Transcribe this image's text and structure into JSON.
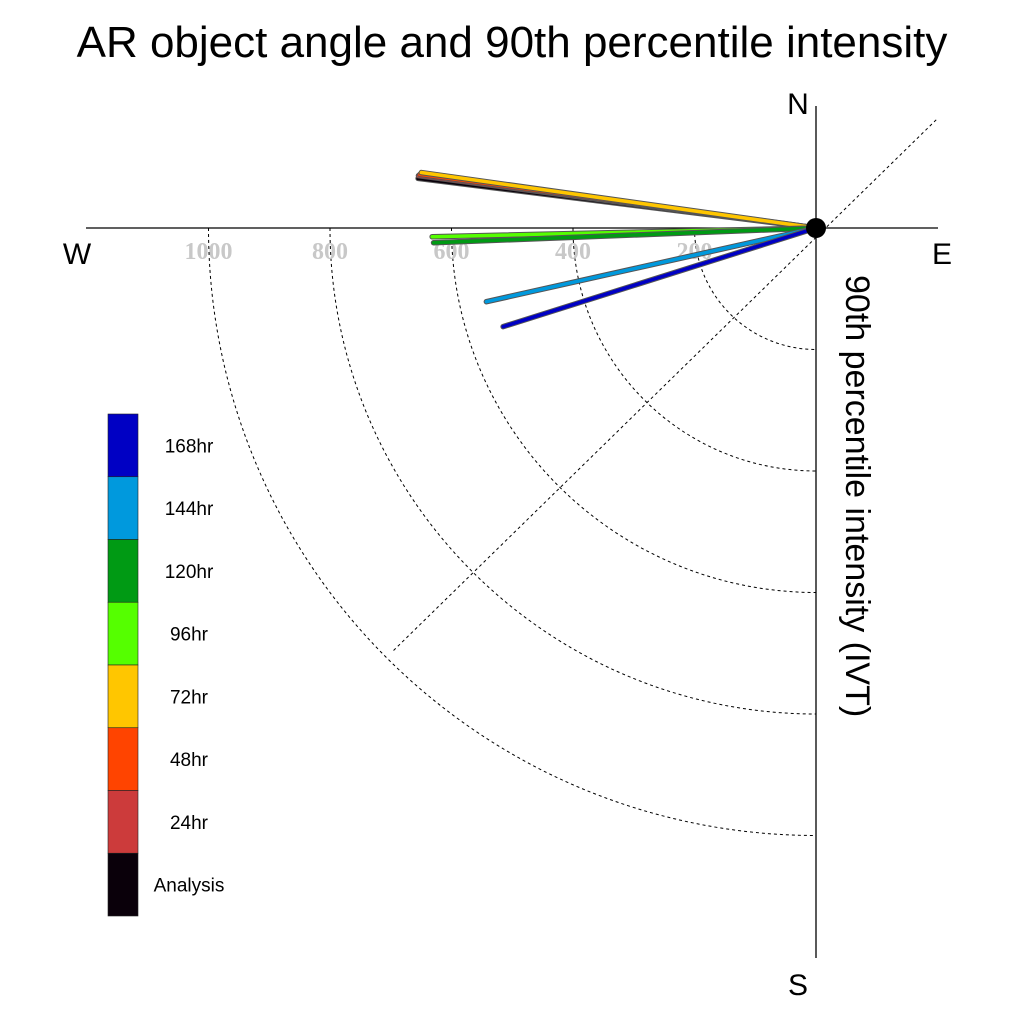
{
  "chart_data": {
    "type": "polar-line",
    "title": "AR object angle and 90th percentile intensity",
    "ylabel": "90th percentile intensity (IVT)",
    "compass": {
      "north": "N",
      "south": "S",
      "east": "E",
      "west": "W"
    },
    "radial_ticks": [
      "200",
      "400",
      "600",
      "800",
      "1000"
    ],
    "radial_tick_values": [
      200,
      400,
      600,
      800,
      1000
    ],
    "radial_range": [
      0,
      1200
    ],
    "series": [
      {
        "name": "Analysis",
        "color": "#0a000a",
        "angle_deg": 172.9,
        "intensity": 660
      },
      {
        "name": "24hr",
        "color": "#cc3b3b",
        "angle_deg": 172.5,
        "intensity": 660
      },
      {
        "name": "48hr",
        "color": "#ff4400",
        "angle_deg": 172.3,
        "intensity": 658
      },
      {
        "name": "72hr",
        "color": "#ffc600",
        "angle_deg": 172.0,
        "intensity": 656
      },
      {
        "name": "96hr",
        "color": "#55ff00",
        "angle_deg": 181.3,
        "intensity": 632
      },
      {
        "name": "120hr",
        "color": "#009a14",
        "angle_deg": 182.2,
        "intensity": 630
      },
      {
        "name": "144hr",
        "color": "#0099dd",
        "angle_deg": 192.6,
        "intensity": 556
      },
      {
        "name": "168hr",
        "color": "#0000c4",
        "angle_deg": 197.5,
        "intensity": 540
      }
    ],
    "legend": {
      "entries": [
        "168hr",
        "144hr",
        "120hr",
        "96hr",
        "72hr",
        "48hr",
        "24hr",
        "Analysis"
      ],
      "colors": [
        "#0000c4",
        "#0099dd",
        "#009a14",
        "#55ff00",
        "#ffc600",
        "#ff4400",
        "#cc3b3b",
        "#0a000a"
      ]
    }
  }
}
